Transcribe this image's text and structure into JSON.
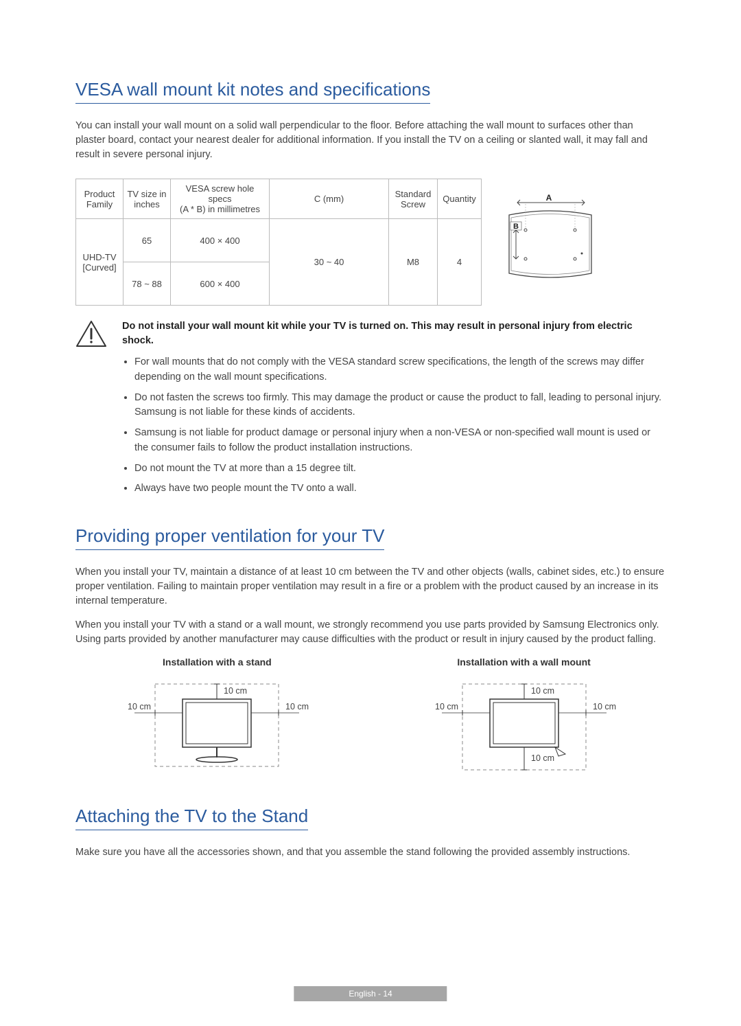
{
  "section1": {
    "title": "VESA wall mount kit notes and specifications",
    "intro": "You can install your wall mount on a solid wall perpendicular to the floor. Before attaching the wall mount to surfaces other than plaster board, contact your nearest dealer for additional information. If you install the TV on a ceiling or slanted wall, it may fall and result in severe personal injury.",
    "table": {
      "headers": {
        "family": "Product\nFamily",
        "size": "TV size in\ninches",
        "spec": "VESA screw hole specs\n(A * B) in millimetres",
        "c": "C (mm)",
        "screw": "Standard\nScrew",
        "qty": "Quantity"
      },
      "family": "UHD-TV\n[Curved]",
      "rows": [
        {
          "size": "65",
          "spec": "400 × 400"
        },
        {
          "size": "78 ~ 88",
          "spec": "600 × 400"
        }
      ],
      "c": "30 ~ 40",
      "screw": "M8",
      "qty": "4"
    },
    "diagram": {
      "A": "A",
      "B": "B"
    },
    "warning": "Do not install your wall mount kit while your TV is turned on. This may result in personal injury from electric shock.",
    "bullets": [
      "For wall mounts that do not comply with the VESA standard screw specifications, the length of the screws may differ depending on the wall mount specifications.",
      "Do not fasten the screws too firmly. This may damage the product or cause the product to fall, leading to personal injury. Samsung is not liable for these kinds of accidents.",
      "Samsung is not liable for product damage or personal injury when a non-VESA or non-specified wall mount is used or the consumer fails to follow the product installation instructions.",
      "Do not mount the TV at more than a 15 degree tilt.",
      "Always have two people mount the TV onto a wall."
    ]
  },
  "section2": {
    "title": "Providing proper ventilation for your TV",
    "p1": "When you install your TV, maintain a distance of at least 10 cm between the TV and other objects (walls, cabinet sides, etc.) to ensure proper ventilation. Failing to maintain proper ventilation may result in a fire or a problem with the product caused by an increase in its internal temperature.",
    "p2": "When you install your TV with a stand or a wall mount, we strongly recommend you use parts provided by Samsung Electronics only. Using parts provided by another manufacturer may cause difficulties with the product or result in injury caused by the product falling.",
    "standTitle": "Installation with a stand",
    "wallTitle": "Installation with a wall mount",
    "dist": "10 cm"
  },
  "section3": {
    "title": "Attaching the TV to the Stand",
    "p": "Make sure you have all the accessories shown, and that you assemble the stand following the provided assembly instructions."
  },
  "footer": "English - 14",
  "colors": {
    "heading": "#2b5b9e",
    "text": "#444444",
    "border": "#bbbbbb",
    "footerBg": "#a6a6a6",
    "footerText": "#ffffff"
  }
}
